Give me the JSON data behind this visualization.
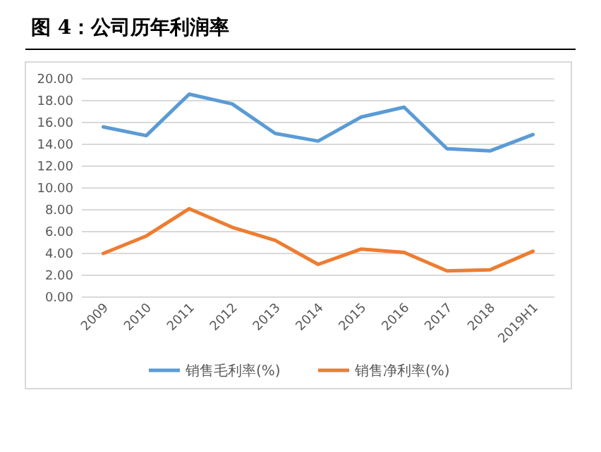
{
  "chart_data": {
    "type": "line",
    "title": "图 4：公司历年利润率",
    "categories": [
      "2009",
      "2010",
      "2011",
      "2012",
      "2013",
      "2014",
      "2015",
      "2016",
      "2017",
      "2018",
      "2019H1"
    ],
    "series": [
      {
        "name": "销售毛利率(%)",
        "color": "#5b9bd5",
        "values": [
          15.6,
          14.8,
          18.6,
          17.7,
          15.0,
          14.3,
          16.5,
          17.4,
          13.6,
          13.4,
          14.9
        ]
      },
      {
        "name": "销售净利率(%)",
        "color": "#ed7d31",
        "values": [
          4.0,
          5.6,
          8.1,
          6.4,
          5.2,
          3.0,
          4.4,
          4.1,
          2.4,
          2.5,
          4.2
        ]
      }
    ],
    "ylim": [
      0,
      20
    ],
    "yticks": [
      {
        "value": 0,
        "label": "0.00"
      },
      {
        "value": 2,
        "label": "2.00"
      },
      {
        "value": 4,
        "label": "4.00"
      },
      {
        "value": 6,
        "label": "6.00"
      },
      {
        "value": 8,
        "label": "8.00"
      },
      {
        "value": 10,
        "label": "10.00"
      },
      {
        "value": 12,
        "label": "12.00"
      },
      {
        "value": 14,
        "label": "14.00"
      },
      {
        "value": 16,
        "label": "16.00"
      },
      {
        "value": 18,
        "label": "18.00"
      },
      {
        "value": 20,
        "label": "20.00"
      }
    ],
    "grid": "y",
    "legend": "bottom",
    "marker": "none",
    "line_style": "solid"
  }
}
